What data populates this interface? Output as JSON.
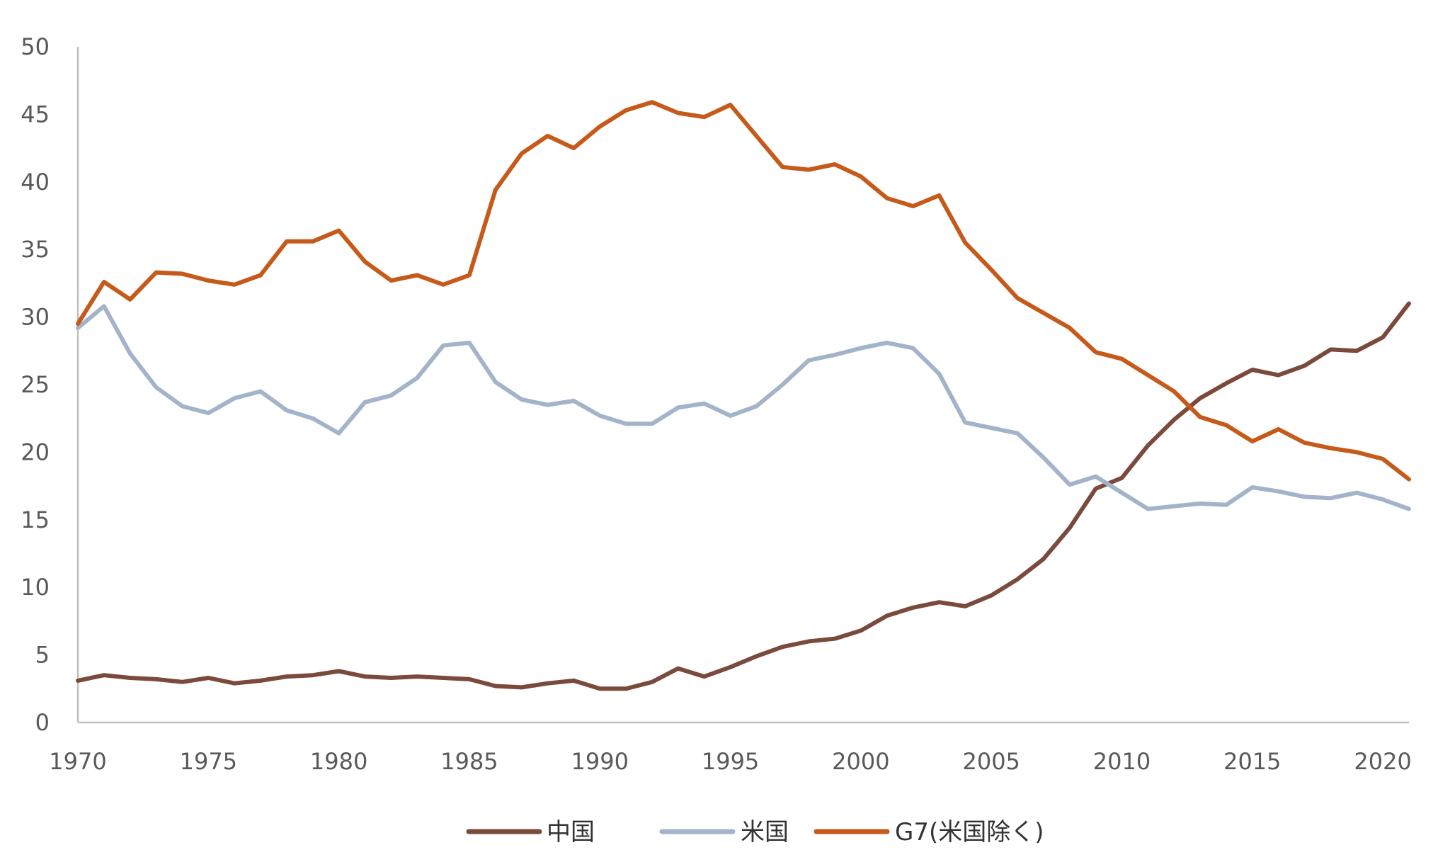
{
  "chart_data": {
    "type": "line",
    "title": "",
    "xlabel": "",
    "ylabel": "",
    "xlim": [
      1970,
      2021
    ],
    "ylim": [
      0,
      50
    ],
    "x_ticks": [
      "1970",
      "1975",
      "1980",
      "1985",
      "1990",
      "1995",
      "2000",
      "2005",
      "2010",
      "2015",
      "2020"
    ],
    "y_ticks": [
      "0",
      "5",
      "10",
      "15",
      "20",
      "25",
      "30",
      "35",
      "40",
      "45",
      "50"
    ],
    "grid": false,
    "legend_position": "bottom",
    "x": [
      1970,
      1971,
      1972,
      1973,
      1974,
      1975,
      1976,
      1977,
      1978,
      1979,
      1980,
      1981,
      1982,
      1983,
      1984,
      1985,
      1986,
      1987,
      1988,
      1989,
      1990,
      1991,
      1992,
      1993,
      1994,
      1995,
      1996,
      1997,
      1998,
      1999,
      2000,
      2001,
      2002,
      2003,
      2004,
      2005,
      2006,
      2007,
      2008,
      2009,
      2010,
      2011,
      2012,
      2013,
      2014,
      2015,
      2016,
      2017,
      2018,
      2019,
      2020,
      2021
    ],
    "series": [
      {
        "name": "中国",
        "color": "#7a4a3c",
        "values": [
          3.1,
          3.5,
          3.3,
          3.2,
          3.0,
          3.3,
          2.9,
          3.1,
          3.4,
          3.5,
          3.8,
          3.4,
          3.3,
          3.4,
          3.3,
          3.2,
          2.7,
          2.6,
          2.9,
          3.1,
          2.5,
          2.5,
          3.0,
          4.0,
          3.4,
          4.1,
          4.9,
          5.6,
          6.0,
          6.2,
          6.8,
          7.9,
          8.5,
          8.9,
          8.6,
          9.4,
          10.6,
          12.1,
          14.4,
          17.3,
          18.1,
          20.5,
          22.4,
          24.0,
          25.1,
          26.1,
          25.7,
          26.4,
          27.6,
          27.5,
          28.5,
          31.0
        ]
      },
      {
        "name": "米国",
        "color": "#a3b4ca",
        "values": [
          29.2,
          30.8,
          27.3,
          24.8,
          23.4,
          22.9,
          24.0,
          24.5,
          23.1,
          22.5,
          21.4,
          23.7,
          24.2,
          25.5,
          27.9,
          28.1,
          25.2,
          23.9,
          23.5,
          23.8,
          22.7,
          22.1,
          22.1,
          23.3,
          23.6,
          22.7,
          23.4,
          25.0,
          26.8,
          27.2,
          27.7,
          28.1,
          27.7,
          25.8,
          22.2,
          21.8,
          21.4,
          19.6,
          17.6,
          18.2,
          17.0,
          15.8,
          16.0,
          16.2,
          16.1,
          17.4,
          17.1,
          16.7,
          16.6,
          17.0,
          16.5,
          15.8
        ]
      },
      {
        "name": "G7(米国除く)",
        "color": "#c55a1a",
        "values": [
          29.5,
          32.6,
          31.3,
          33.3,
          33.2,
          32.7,
          32.4,
          33.1,
          35.6,
          35.6,
          36.4,
          34.1,
          32.7,
          33.1,
          32.4,
          33.1,
          39.4,
          42.1,
          43.4,
          42.5,
          44.1,
          45.3,
          45.9,
          45.1,
          44.8,
          45.7,
          43.4,
          41.1,
          40.9,
          41.3,
          40.4,
          38.8,
          38.2,
          39.0,
          35.5,
          33.5,
          31.4,
          30.3,
          29.2,
          27.4,
          26.9,
          25.7,
          24.5,
          22.6,
          22.0,
          20.8,
          21.7,
          20.7,
          20.3,
          20.0,
          19.5,
          18.0
        ]
      }
    ]
  }
}
